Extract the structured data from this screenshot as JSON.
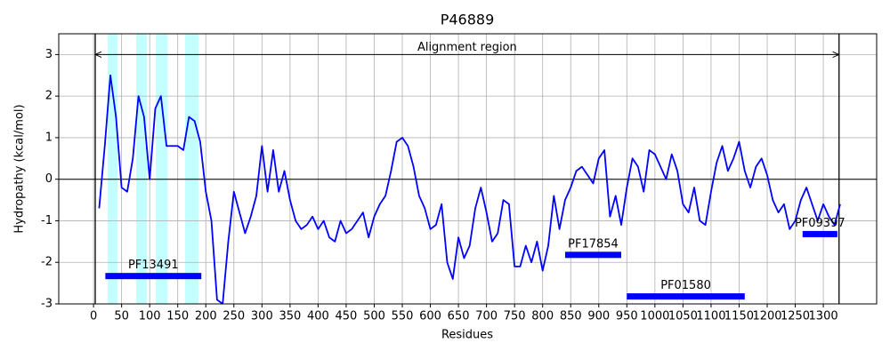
{
  "chart_data": {
    "type": "line",
    "title": "P46889",
    "xlabel": "Residues",
    "ylabel": "Hydropathy (kcal/mol)",
    "x": [
      10,
      20,
      30,
      40,
      50,
      60,
      70,
      80,
      90,
      100,
      110,
      120,
      130,
      140,
      150,
      160,
      170,
      180,
      190,
      200,
      210,
      220,
      230,
      240,
      250,
      260,
      270,
      280,
      290,
      300,
      310,
      320,
      330,
      340,
      350,
      360,
      370,
      380,
      390,
      400,
      410,
      420,
      430,
      440,
      450,
      460,
      470,
      480,
      490,
      500,
      510,
      520,
      530,
      540,
      550,
      560,
      570,
      580,
      590,
      600,
      610,
      620,
      630,
      640,
      650,
      660,
      670,
      680,
      690,
      700,
      710,
      720,
      730,
      740,
      750,
      760,
      770,
      780,
      790,
      800,
      810,
      820,
      830,
      840,
      850,
      860,
      870,
      880,
      890,
      900,
      910,
      920,
      930,
      940,
      950,
      960,
      970,
      980,
      990,
      1000,
      1010,
      1020,
      1030,
      1040,
      1050,
      1060,
      1070,
      1080,
      1090,
      1100,
      1110,
      1120,
      1130,
      1140,
      1150,
      1160,
      1170,
      1180,
      1190,
      1200,
      1210,
      1220,
      1230,
      1240,
      1250,
      1260,
      1270,
      1280,
      1290,
      1300,
      1310,
      1320,
      1330
    ],
    "values": [
      -0.7,
      0.8,
      2.5,
      1.5,
      -0.2,
      -0.3,
      0.5,
      2.0,
      1.5,
      0.0,
      1.7,
      2.0,
      0.8,
      0.8,
      0.8,
      0.7,
      1.5,
      1.4,
      0.9,
      -0.3,
      -1.0,
      -2.9,
      -3.0,
      -1.5,
      -0.3,
      -0.8,
      -1.3,
      -0.9,
      -0.4,
      0.8,
      -0.3,
      0.7,
      -0.3,
      0.2,
      -0.5,
      -1.0,
      -1.2,
      -1.1,
      -0.9,
      -1.2,
      -1.0,
      -1.4,
      -1.5,
      -1.0,
      -1.3,
      -1.2,
      -1.0,
      -0.8,
      -1.4,
      -0.9,
      -0.6,
      -0.4,
      0.2,
      0.9,
      1.0,
      0.8,
      0.3,
      -0.4,
      -0.7,
      -1.2,
      -1.1,
      -0.6,
      -2.0,
      -2.4,
      -1.4,
      -1.9,
      -1.6,
      -0.7,
      -0.2,
      -0.8,
      -1.5,
      -1.3,
      -0.5,
      -0.6,
      -2.1,
      -2.1,
      -1.6,
      -2.0,
      -1.5,
      -2.2,
      -1.6,
      -0.4,
      -1.2,
      -0.5,
      -0.2,
      0.2,
      0.3,
      0.1,
      -0.1,
      0.5,
      0.7,
      -0.9,
      -0.4,
      -1.1,
      -0.2,
      0.5,
      0.3,
      -0.3,
      0.7,
      0.6,
      0.3,
      0.0,
      0.6,
      0.2,
      -0.6,
      -0.8,
      -0.2,
      -1.0,
      -1.1,
      -0.3,
      0.4,
      0.8,
      0.2,
      0.5,
      0.9,
      0.2,
      -0.2,
      0.3,
      0.5,
      0.1,
      -0.5,
      -0.8,
      -0.6,
      -1.2,
      -1.0,
      -0.5,
      -0.2,
      -0.6,
      -1.0,
      -0.6,
      -0.9,
      -1.1,
      -0.6
    ],
    "color": "#0000ff",
    "xlim": [
      -62,
      1395
    ],
    "ylim": [
      -3,
      3.5
    ],
    "xticks": [
      0,
      50,
      100,
      150,
      200,
      250,
      300,
      350,
      400,
      450,
      500,
      550,
      600,
      650,
      700,
      750,
      800,
      850,
      900,
      950,
      1000,
      1050,
      1100,
      1150,
      1200,
      1250,
      1300
    ],
    "yticks": [
      -3,
      -2,
      -1,
      0,
      1,
      2,
      3
    ],
    "grid": true,
    "hlines": [
      0
    ],
    "alignment": {
      "label": "Alignment region",
      "start": 3,
      "end": 1328,
      "y": 3
    },
    "highlights": [
      {
        "start": 25,
        "end": 43
      },
      {
        "start": 76,
        "end": 95
      },
      {
        "start": 111,
        "end": 132
      },
      {
        "start": 163,
        "end": 187
      }
    ],
    "highlight_color": "#c4ffff",
    "domains": [
      {
        "label": "PF13491",
        "start": 21,
        "end": 192,
        "y": -2.33
      },
      {
        "label": "PF17854",
        "start": 840,
        "end": 940,
        "y": -1.82
      },
      {
        "label": "PF01580",
        "start": 950,
        "end": 1160,
        "y": -2.82
      },
      {
        "label": "PF09397",
        "start": 1263,
        "end": 1325,
        "y": -1.32
      }
    ],
    "domain_color": "#0000ff"
  }
}
